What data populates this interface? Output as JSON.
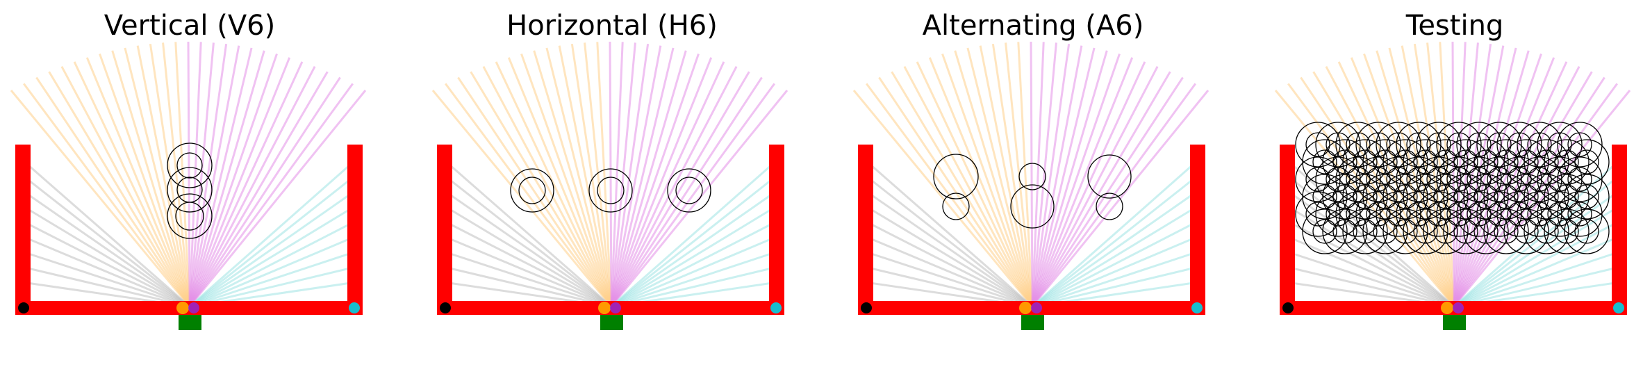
{
  "figure": {
    "panels": [
      {
        "id": "vertical",
        "title": "Vertical (V6)",
        "layout": "vertical"
      },
      {
        "id": "horizontal",
        "title": "Horizontal (H6)",
        "layout": "horizontal"
      },
      {
        "id": "alternating",
        "title": "Alternating (A6)",
        "layout": "alternating"
      },
      {
        "id": "testing",
        "title": "Testing",
        "layout": "grid"
      }
    ],
    "colors": {
      "wall": "#ff0000",
      "base_block": "#008000",
      "left_corner_dot": "#000000",
      "right_corner_dot": "#17becf",
      "ray_gray": "#bfbfbf",
      "ray_orange": "#ffd08a",
      "ray_magenta": "#e48fe8",
      "ray_cyan": "#9fe3e3",
      "hub_orange": "#ff9900",
      "hub_purple": "#8a2be2",
      "circle_stroke": "#000000"
    }
  }
}
